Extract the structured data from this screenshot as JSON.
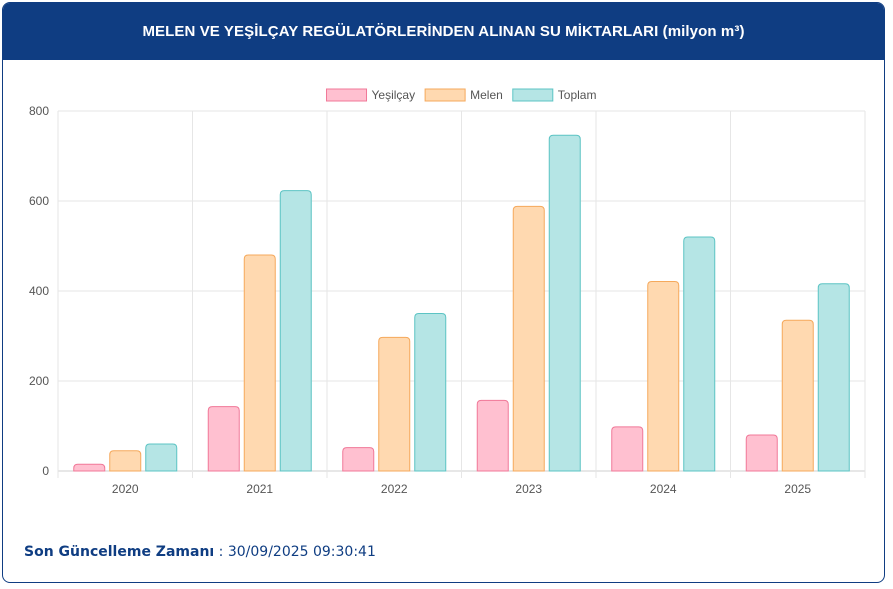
{
  "header": {
    "title": "MELEN VE YEŞİLÇAY REGÜLATÖRLERİNDEN ALINAN SU MİKTARLARI (milyon m³)"
  },
  "footer": {
    "label": "Son Güncelleme Zamanı",
    "separator": " : ",
    "value": "30/09/2025 09:30:41"
  },
  "chart_data": {
    "type": "bar",
    "title": "MELEN VE YEŞİLÇAY REGÜLATÖRLERİNDEN ALINAN SU MİKTARLARI (milyon m³)",
    "categories": [
      "2020",
      "2021",
      "2022",
      "2023",
      "2024",
      "2025"
    ],
    "series": [
      {
        "name": "Yeşilçay",
        "values": [
          15,
          143,
          52,
          157,
          98,
          80
        ],
        "fill": "#ffc0d0",
        "stroke": "#f07898"
      },
      {
        "name": "Melen",
        "values": [
          45,
          480,
          297,
          588,
          421,
          335
        ],
        "fill": "#ffd9b0",
        "stroke": "#f5a95c"
      },
      {
        "name": "Toplam",
        "values": [
          60,
          623,
          350,
          746,
          520,
          416
        ],
        "fill": "#b5e5e5",
        "stroke": "#5cc4c4"
      }
    ],
    "yticks": [
      "0",
      "200",
      "400",
      "600",
      "800"
    ],
    "ylim": [
      0,
      800
    ],
    "grid": true,
    "legend": "top-center"
  }
}
